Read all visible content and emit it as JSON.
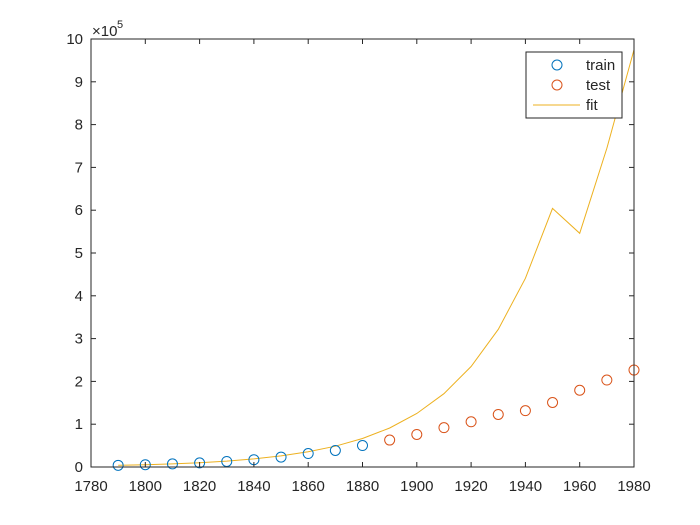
{
  "chart_data": {
    "type": "scatter",
    "x_ticks": [
      1780,
      1800,
      1820,
      1840,
      1860,
      1880,
      1900,
      1920,
      1940,
      1960,
      1980
    ],
    "y_ticks": [
      0,
      1,
      2,
      3,
      4,
      5,
      6,
      7,
      8,
      9,
      10
    ],
    "y_tick_labels": [
      "0",
      "1",
      "2",
      "3",
      "4",
      "5",
      "6",
      "7",
      "8",
      "9",
      "10"
    ],
    "xlim": [
      1780,
      1980
    ],
    "ylim": [
      0,
      1000000
    ],
    "y_exponent_base": "×10",
    "y_exponent_power": "5",
    "grid": false,
    "legend_position": "top-right",
    "series": [
      {
        "name": "train",
        "style": "circle-marker",
        "color": "#0072BD",
        "x": [
          1790,
          1800,
          1810,
          1820,
          1830,
          1840,
          1850,
          1860,
          1870,
          1880
        ],
        "y": [
          3929,
          5308,
          7240,
          9638,
          12866,
          17069,
          23192,
          31443,
          38558,
          50156
        ]
      },
      {
        "name": "test",
        "style": "circle-marker",
        "color": "#D95319",
        "x": [
          1890,
          1900,
          1910,
          1920,
          1930,
          1940,
          1950,
          1960,
          1970,
          1980
        ],
        "y": [
          62948,
          75995,
          91972,
          105711,
          122775,
          131669,
          150697,
          179323,
          203212,
          226505
        ]
      },
      {
        "name": "fit",
        "style": "line",
        "color": "#EDB120",
        "x": [
          1790,
          1800,
          1810,
          1820,
          1830,
          1840,
          1850,
          1860,
          1870,
          1880,
          1890,
          1900,
          1910,
          1920,
          1930,
          1940,
          1950,
          1960,
          1970,
          1980
        ],
        "y": [
          3900,
          5350,
          7330,
          10050,
          13770,
          18870,
          25860,
          35440,
          48580,
          66570,
          91230,
          125000,
          171300,
          234800,
          321800,
          441000,
          604300,
          546000,
          745000,
          975000
        ]
      }
    ]
  }
}
